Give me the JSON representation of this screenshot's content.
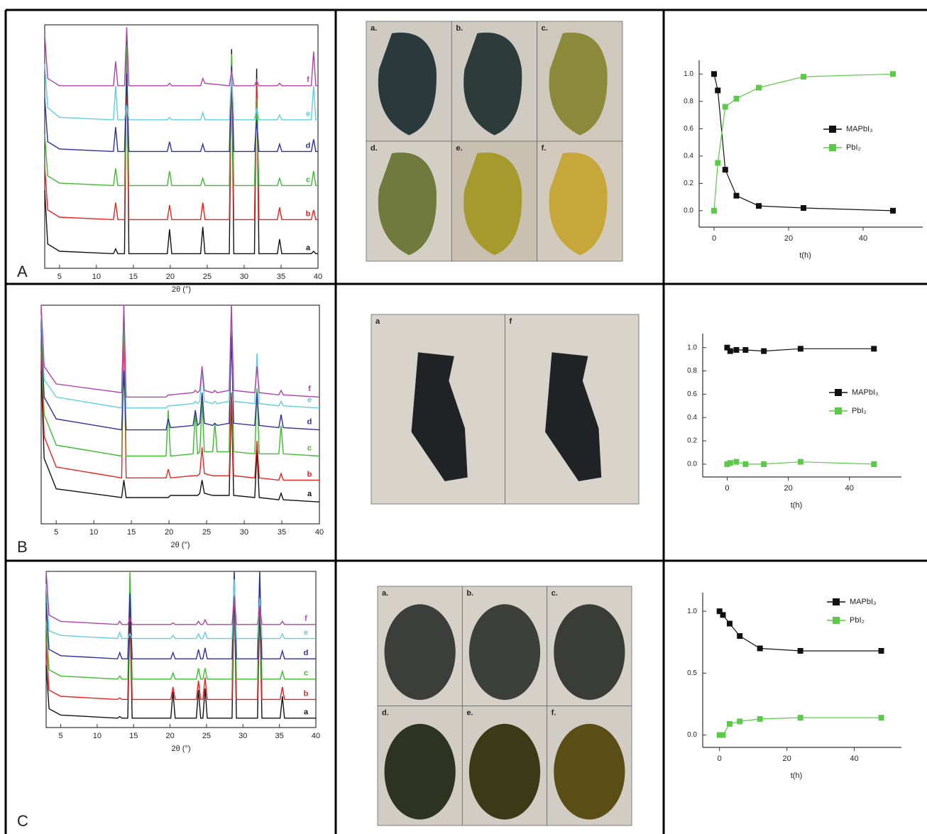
{
  "panel_labels": [
    "A",
    "B",
    "C"
  ],
  "photos": [
    {
      "labels": [
        "a.",
        "b.",
        "c.",
        "d.",
        "e.",
        "f."
      ]
    },
    {
      "labels": [
        "a",
        "f"
      ]
    },
    {
      "labels": [
        "a.",
        "b.",
        "c.",
        "d.",
        "e.",
        "f."
      ]
    }
  ],
  "chart_data": [
    {
      "type": "xrd",
      "xlabel": "2θ (°)",
      "xlim": [
        3,
        40
      ],
      "ylim": [
        0,
        100
      ],
      "xticks": [
        5,
        10,
        15,
        20,
        25,
        30,
        35,
        40
      ],
      "x": [
        3,
        3.4,
        5,
        12.3,
        12.6,
        12.9,
        13.8,
        14.1,
        14.4,
        19.6,
        19.9,
        20.2,
        24.1,
        24.4,
        24.7,
        28,
        28.3,
        28.6,
        31.4,
        31.7,
        32,
        34.5,
        34.8,
        35.1,
        39.1,
        39.4,
        39.7,
        40
      ],
      "series": [
        {
          "name": "a",
          "color": "#111111",
          "values": [
            32,
            10,
            7,
            6,
            8,
            6,
            6,
            96,
            6,
            6,
            16,
            6,
            6,
            17,
            6,
            6,
            90,
            6,
            6,
            82,
            6,
            6,
            12,
            6,
            6,
            7,
            6,
            6
          ]
        },
        {
          "name": "b",
          "color": "#e8221e",
          "values": [
            42,
            24,
            21,
            20,
            27,
            20,
            20,
            84,
            20,
            20,
            26,
            20,
            20,
            27,
            20,
            20,
            82,
            20,
            20,
            78,
            20,
            20,
            25,
            20,
            20,
            24,
            20,
            20
          ]
        },
        {
          "name": "c",
          "color": "#3dbb2e",
          "values": [
            55,
            38,
            35,
            34,
            41,
            34,
            34,
            92,
            34,
            34,
            40,
            34,
            34,
            37,
            34,
            34,
            88,
            34,
            34,
            70,
            34,
            34,
            37,
            34,
            34,
            40,
            34,
            34
          ]
        },
        {
          "name": "d",
          "color": "#2c2f9c",
          "values": [
            70,
            52,
            49,
            48,
            58,
            48,
            48,
            80,
            48,
            48,
            52,
            48,
            48,
            51,
            48,
            48,
            83,
            48,
            48,
            61,
            48,
            48,
            51,
            48,
            48,
            53,
            48,
            48
          ]
        },
        {
          "name": "e",
          "color": "#5fcfe0",
          "values": [
            84,
            66,
            62,
            61,
            75,
            61,
            61,
            67,
            61,
            61,
            62,
            61,
            61,
            64,
            61,
            61,
            80,
            61,
            61,
            66,
            61,
            61,
            63,
            61,
            61,
            75,
            61,
            61
          ]
        },
        {
          "name": "f",
          "color": "#b240a8",
          "values": [
            96,
            78,
            75,
            75,
            85,
            75,
            75,
            99,
            75,
            75,
            76,
            75,
            75,
            78,
            76,
            75,
            81,
            75,
            75,
            77,
            75,
            75,
            76,
            75,
            75,
            89,
            75,
            75
          ]
        }
      ]
    },
    {
      "type": "kinetics",
      "xlabel": "t(h)",
      "xlim": [
        -4,
        56
      ],
      "ylim": [
        -0.12,
        1.1
      ],
      "xticks": [
        0,
        20,
        40
      ],
      "yticks": [
        {
          "value": 0,
          "label": "0.0"
        },
        {
          "value": 0.2,
          "label": "0.2"
        },
        {
          "value": 0.4,
          "label": "0.4"
        },
        {
          "value": 0.6,
          "label": "0.6"
        },
        {
          "value": 0.8,
          "label": "0.8"
        },
        {
          "value": 1,
          "label": "1.0"
        }
      ],
      "x": [
        0,
        1,
        3,
        6,
        12,
        24,
        48
      ],
      "series": [
        {
          "name": "MAPbI₃",
          "color": "#111111",
          "values": [
            1.0,
            0.88,
            0.3,
            0.11,
            0.035,
            0.02,
            0.0
          ]
        },
        {
          "name": "PbI₂",
          "color": "#5cc94a",
          "values": [
            0,
            0.35,
            0.76,
            0.82,
            0.9,
            0.98,
            1.0
          ]
        }
      ]
    },
    {
      "type": "xrd",
      "xlabel": "2θ (°)",
      "xlim": [
        3,
        40
      ],
      "ylim": [
        0,
        100
      ],
      "xticks": [
        5,
        10,
        15,
        20,
        25,
        30,
        35,
        40
      ],
      "x": [
        3,
        3.4,
        5,
        13.7,
        14,
        14.3,
        19.6,
        19.9,
        20.2,
        23.2,
        23.5,
        23.8,
        24.1,
        24.4,
        24.7,
        25.8,
        26.1,
        26.4,
        28,
        28.3,
        28.6,
        31.4,
        31.7,
        32,
        34.6,
        34.9,
        35.2,
        40
      ],
      "series": [
        {
          "name": "a",
          "color": "#111111",
          "values": [
            70,
            30,
            16,
            12,
            20,
            12,
            12,
            12,
            13,
            13,
            13,
            13,
            14,
            20,
            14,
            13,
            13,
            13,
            13,
            58,
            13,
            12,
            34,
            12,
            11,
            14,
            11,
            10
          ]
        },
        {
          "name": "b",
          "color": "#e8221e",
          "values": [
            80,
            40,
            26,
            21,
            90,
            21,
            21,
            25,
            21,
            22,
            22,
            22,
            23,
            35,
            23,
            22,
            22,
            22,
            22,
            60,
            22,
            21,
            38,
            21,
            20,
            23,
            20,
            20
          ]
        },
        {
          "name": "c",
          "color": "#3dbb2e",
          "values": [
            88,
            50,
            36,
            31,
            100,
            31,
            31,
            52,
            31,
            32,
            51,
            32,
            33,
            56,
            33,
            33,
            46,
            33,
            33,
            100,
            33,
            32,
            62,
            32,
            32,
            45,
            32,
            31
          ]
        },
        {
          "name": "d",
          "color": "#2c2f9c",
          "values": [
            92,
            58,
            48,
            43,
            70,
            43,
            43,
            48,
            44,
            45,
            52,
            45,
            46,
            60,
            46,
            45,
            46,
            45,
            46,
            86,
            46,
            45,
            60,
            45,
            44,
            50,
            44,
            43
          ]
        },
        {
          "name": "e",
          "color": "#5fcfe0",
          "values": [
            96,
            66,
            58,
            53,
            100,
            53,
            53,
            54,
            54,
            55,
            56,
            55,
            56,
            70,
            56,
            55,
            56,
            55,
            56,
            100,
            56,
            55,
            78,
            55,
            54,
            56,
            54,
            53
          ]
        },
        {
          "name": "f",
          "color": "#b240a8",
          "values": [
            100,
            72,
            64,
            60,
            100,
            58,
            58,
            59,
            59,
            60,
            61,
            60,
            61,
            72,
            61,
            60,
            61,
            60,
            61,
            100,
            61,
            60,
            72,
            60,
            59,
            61,
            59,
            58
          ]
        }
      ]
    },
    {
      "type": "kinetics",
      "xlabel": "t(h)",
      "xlim": [
        -8,
        57
      ],
      "ylim": [
        -0.11,
        1.12
      ],
      "xticks": [
        0,
        20,
        40
      ],
      "yticks": [
        {
          "value": 0,
          "label": "0.0"
        },
        {
          "value": 0.2,
          "label": "0.2"
        },
        {
          "value": 0.4,
          "label": "0.4"
        },
        {
          "value": 0.6,
          "label": "0.6"
        },
        {
          "value": 0.8,
          "label": "0.8"
        },
        {
          "value": 1,
          "label": "1.0"
        }
      ],
      "x": [
        0,
        1,
        3,
        6,
        12,
        24,
        48
      ],
      "series": [
        {
          "name": "MAPbI₃",
          "color": "#111111",
          "values": [
            1.0,
            0.97,
            0.98,
            0.98,
            0.97,
            0.99,
            0.99
          ]
        },
        {
          "name": "PbI₂",
          "color": "#5cc94a",
          "values": [
            0,
            0.01,
            0.02,
            0.0,
            0.0,
            0.02,
            0.0
          ]
        }
      ]
    },
    {
      "type": "xrd",
      "xlabel": "2θ (°)",
      "xlim": [
        3,
        40
      ],
      "ylim": [
        0,
        100
      ],
      "xticks": [
        5,
        10,
        15,
        20,
        25,
        30,
        35,
        40
      ],
      "x": [
        3,
        3.4,
        5,
        12.8,
        13.1,
        13.4,
        14.2,
        14.5,
        14.8,
        20.1,
        20.4,
        20.7,
        23.6,
        23.9,
        24.2,
        24.5,
        24.8,
        25.1,
        28.5,
        28.8,
        29.1,
        32,
        32.3,
        32.6,
        35.1,
        35.4,
        35.7,
        40
      ],
      "series": [
        {
          "name": "a",
          "color": "#111111",
          "values": [
            40,
            12,
            8,
            6,
            7,
            6,
            6,
            77,
            6,
            6,
            23,
            6,
            6,
            24,
            6,
            6,
            25,
            6,
            6,
            90,
            6,
            6,
            82,
            6,
            6,
            20,
            6,
            6
          ]
        },
        {
          "name": "b",
          "color": "#e8221e",
          "values": [
            55,
            24,
            20,
            18,
            19,
            18,
            18,
            90,
            18,
            18,
            26,
            18,
            18,
            30,
            18,
            18,
            32,
            18,
            18,
            98,
            18,
            18,
            94,
            18,
            18,
            26,
            18,
            18
          ]
        },
        {
          "name": "c",
          "color": "#3dbb2e",
          "values": [
            68,
            37,
            33,
            31,
            33,
            31,
            31,
            100,
            31,
            31,
            35,
            31,
            31,
            38,
            31,
            31,
            38,
            31,
            31,
            100,
            31,
            31,
            100,
            31,
            31,
            36,
            31,
            31
          ]
        },
        {
          "name": "d",
          "color": "#2c2f9c",
          "values": [
            80,
            50,
            46,
            44,
            48,
            44,
            44,
            86,
            44,
            44,
            48,
            44,
            44,
            50,
            44,
            44,
            51,
            44,
            44,
            100,
            44,
            44,
            100,
            44,
            44,
            49,
            44,
            44
          ]
        },
        {
          "name": "e",
          "color": "#5fcfe0",
          "values": [
            92,
            62,
            59,
            57,
            61,
            57,
            57,
            60,
            57,
            57,
            59,
            57,
            57,
            60,
            57,
            57,
            61,
            57,
            57,
            95,
            57,
            57,
            83,
            57,
            57,
            60,
            57,
            57
          ]
        },
        {
          "name": "f",
          "color": "#b240a8",
          "values": [
            100,
            72,
            68,
            66,
            68,
            66,
            66,
            70,
            66,
            66,
            67,
            66,
            66,
            68,
            66,
            66,
            69,
            66,
            66,
            84,
            66,
            66,
            78,
            66,
            66,
            68,
            66,
            66
          ]
        }
      ]
    },
    {
      "type": "kinetics",
      "xlabel": "t(h)",
      "xlim": [
        -5,
        54
      ],
      "ylim": [
        -0.1,
        1.15
      ],
      "xticks": [
        0,
        20,
        40
      ],
      "yticks": [
        {
          "value": 0,
          "label": "0.0"
        },
        {
          "value": 0.5,
          "label": "0.5"
        },
        {
          "value": 1,
          "label": "1.0"
        }
      ],
      "x": [
        0,
        1,
        3,
        6,
        12,
        24,
        48
      ],
      "series": [
        {
          "name": "MAPbI₃",
          "color": "#111111",
          "values": [
            1.0,
            0.97,
            0.9,
            0.8,
            0.7,
            0.68,
            0.68
          ]
        },
        {
          "name": "PbI₂",
          "color": "#5cc94a",
          "values": [
            0,
            0.0,
            0.09,
            0.11,
            0.13,
            0.14,
            0.14
          ]
        }
      ]
    }
  ]
}
